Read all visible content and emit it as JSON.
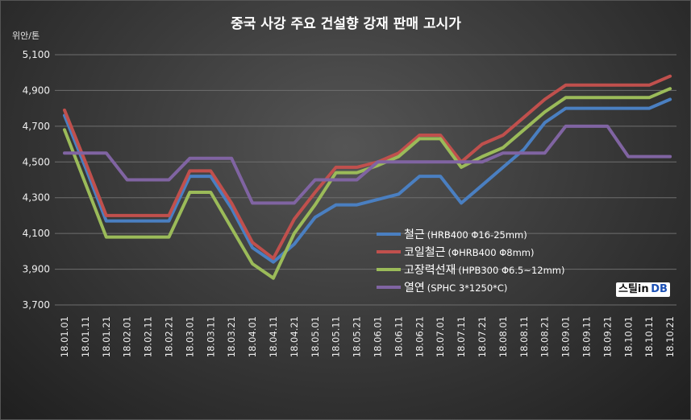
{
  "chart_data": {
    "type": "line",
    "title": "중국 사강 주요 건설향 강재 판매 고시가",
    "ylabel": "위안/톤",
    "ylim": [
      3700,
      5100
    ],
    "yticks": [
      "3,700",
      "3,900",
      "4,100",
      "4,300",
      "4,500",
      "4,700",
      "4,900",
      "5,100"
    ],
    "categories": [
      "18.01.01",
      "18.01.11",
      "18.01.21",
      "18.02.01",
      "18.02.11",
      "18.02.21",
      "18.03.01",
      "18.03.11",
      "18.03.21",
      "18.04.01",
      "18.04.11",
      "18.04.21",
      "18.05.01",
      "18.05.11",
      "18.05.21",
      "18.06.01",
      "18.06.11",
      "18.06.21",
      "18.07.01",
      "18.07.11",
      "18.07.21",
      "18.08.01",
      "18.08.11",
      "18.08.21",
      "18.09.01",
      "18.09.11",
      "18.09.21",
      "18.10.01",
      "18.10.11",
      "18.10.21"
    ],
    "grid": true,
    "legend_position": "center-right",
    "series": [
      {
        "name": "철근",
        "spec": "(HRB400  Φ16-25mm)",
        "color": "#4a7fc1",
        "values": [
          4760,
          4470,
          4170,
          4170,
          4170,
          4170,
          4420,
          4420,
          4240,
          4020,
          3940,
          4040,
          4190,
          4260,
          4260,
          4290,
          4320,
          4420,
          4420,
          4270,
          4370,
          4470,
          4570,
          4720,
          4800,
          4800,
          4800,
          4800,
          4800,
          4850
        ]
      },
      {
        "name": "코일철근",
        "spec": "(ΦHRB400  Φ8mm)",
        "color": "#c0504d",
        "values": [
          4790,
          4500,
          4200,
          4200,
          4200,
          4200,
          4450,
          4450,
          4270,
          4050,
          3960,
          4180,
          4330,
          4470,
          4470,
          4500,
          4550,
          4650,
          4650,
          4500,
          4600,
          4650,
          4750,
          4850,
          4930,
          4930,
          4930,
          4930,
          4930,
          4980
        ]
      },
      {
        "name": "고장력선재",
        "spec": "(HPB300  Φ6.5~12mm)",
        "color": "#9bbb59",
        "values": [
          4680,
          4380,
          4080,
          4080,
          4080,
          4080,
          4330,
          4330,
          4130,
          3930,
          3850,
          4100,
          4260,
          4440,
          4440,
          4480,
          4530,
          4630,
          4630,
          4470,
          4530,
          4580,
          4680,
          4780,
          4860,
          4860,
          4860,
          4860,
          4860,
          4910
        ]
      },
      {
        "name": "열연",
        "spec": "(SPHC 3*1250*C)",
        "color": "#8064a2",
        "values": [
          4550,
          4550,
          4550,
          4400,
          4400,
          4400,
          4520,
          4520,
          4520,
          4270,
          4270,
          4270,
          4400,
          4400,
          4400,
          4500,
          4500,
          4500,
          4500,
          4500,
          4500,
          4550,
          4550,
          4550,
          4700,
          4700,
          4700,
          4530,
          4530,
          4530
        ]
      }
    ]
  },
  "watermark": {
    "part1": "스틸",
    "part2": "in",
    "part3": "DB"
  }
}
